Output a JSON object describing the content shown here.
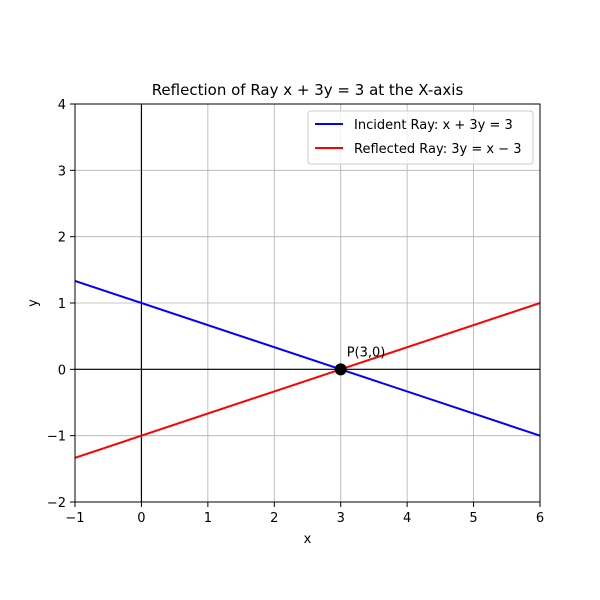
{
  "chart_data": {
    "type": "line",
    "title": "Reflection of Ray x + 3y = 3 at the X-axis",
    "xlabel": "x",
    "ylabel": "y",
    "xlim": [
      -1,
      6
    ],
    "ylim": [
      -2,
      4
    ],
    "xticks": [
      -1,
      0,
      1,
      2,
      3,
      4,
      5,
      6
    ],
    "yticks": [
      -2,
      -1,
      0,
      1,
      2,
      3,
      4
    ],
    "xtick_labels": [
      "−1",
      "0",
      "1",
      "2",
      "3",
      "4",
      "5",
      "6"
    ],
    "ytick_labels": [
      "−2",
      "−1",
      "0",
      "1",
      "2",
      "3",
      "4"
    ],
    "grid": true,
    "legend_position": "top-right",
    "reference_lines": [
      {
        "orientation": "horizontal",
        "value": 0,
        "color": "#000000"
      },
      {
        "orientation": "vertical",
        "value": 0,
        "color": "#000000"
      }
    ],
    "series": [
      {
        "name": "Incident Ray: x + 3y = 3",
        "color": "#0000ff",
        "x": [
          -1,
          6
        ],
        "y": [
          1.3333,
          -1
        ]
      },
      {
        "name": "Reflected Ray: 3y = x − 3",
        "color": "#ff0000",
        "x": [
          -1,
          6
        ],
        "y": [
          -1.3333,
          1
        ]
      }
    ],
    "points": [
      {
        "x": 3,
        "y": 0,
        "label": "P(3,0)",
        "color": "#000000"
      }
    ]
  }
}
